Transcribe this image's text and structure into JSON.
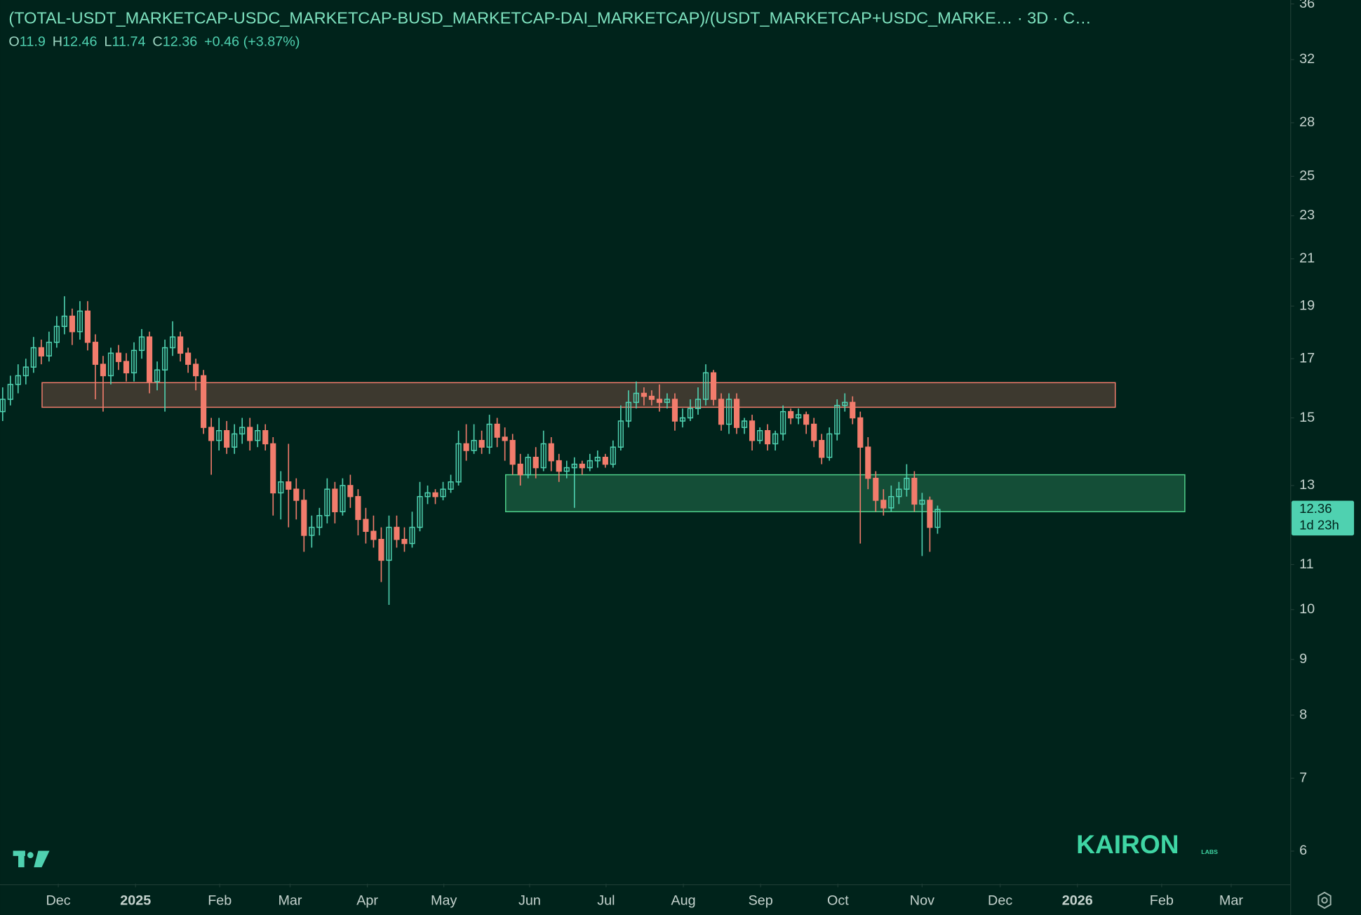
{
  "chart_data": {
    "type": "candlestick",
    "title": "(TOTAL-USDT_MARKETCAP-USDC_MARKETCAP-BUSD_MARKETCAP-DAI_MARKETCAP)/(USDT_MARKETCAP+USDC_MARKE… · 3D · C…",
    "ohlc_labels": [
      "O",
      "H",
      "L",
      "C"
    ],
    "change": "+0.46 (+3.87%)",
    "countdown": "1d 23h",
    "brand": "KAIRON",
    "brand_sub": "LABS",
    "up_color": "#4fd1b0",
    "down_color": "#f27c6c",
    "log_scale": true,
    "ylim": [
      5.6,
      36.3
    ],
    "yticks": [
      6,
      7,
      8,
      9,
      10,
      11,
      13,
      15,
      17,
      19,
      21,
      23,
      25,
      28,
      32,
      36
    ],
    "xlim": [
      -0.34,
      166.7
    ],
    "xticks": [
      {
        "value": 7.2,
        "label": "Dec"
      },
      {
        "value": 17.2,
        "label": "2025"
      },
      {
        "value": 28.1,
        "label": "Feb"
      },
      {
        "value": 37.2,
        "label": "Mar"
      },
      {
        "value": 47.2,
        "label": "Apr"
      },
      {
        "value": 57.1,
        "label": "May"
      },
      {
        "value": 68.2,
        "label": "Jun"
      },
      {
        "value": 78.1,
        "label": "Jul"
      },
      {
        "value": 88.1,
        "label": "Aug"
      },
      {
        "value": 98.1,
        "label": "Sep"
      },
      {
        "value": 108.1,
        "label": "Oct"
      },
      {
        "value": 119,
        "label": "Nov"
      },
      {
        "value": 129.1,
        "label": "Dec"
      },
      {
        "value": 139.1,
        "label": "2026"
      },
      {
        "value": 150,
        "label": "Feb"
      },
      {
        "value": 159,
        "label": "Mar"
      }
    ],
    "zones": [
      {
        "x0": 5.1,
        "x1": 144.0,
        "y0": 15.34,
        "y1": 16.16,
        "color": "#f27c6c"
      },
      {
        "x0": 65.1,
        "x1": 153.0,
        "y0": 12.3,
        "y1": 13.3,
        "color": "#4fd18a"
      }
    ],
    "open": [
      15.2,
      15.6,
      16.1,
      16.4,
      16.7,
      17.4,
      17.1,
      17.6,
      18.2,
      18.6,
      18.0,
      18.8,
      17.6,
      16.8,
      16.4,
      17.2,
      16.9,
      16.5,
      17.3,
      17.8,
      16.2,
      16.6,
      17.4,
      17.8,
      17.2,
      16.8,
      16.4,
      14.7,
      14.3,
      14.6,
      14.1,
      14.5,
      14.7,
      14.3,
      14.6,
      14.2,
      12.8,
      13.1,
      12.9,
      12.6,
      11.7,
      11.9,
      12.2,
      12.9,
      12.3,
      13.0,
      12.7,
      12.1,
      11.8,
      11.6,
      11.1,
      11.9,
      11.6,
      11.5,
      11.9,
      12.7,
      12.8,
      12.7,
      12.9,
      13.1,
      14.2,
      14.0,
      14.3,
      14.1,
      14.8,
      14.4,
      14.3,
      13.6,
      13.3,
      13.8,
      13.5,
      14.2,
      13.7,
      13.4,
      13.5,
      13.6,
      13.5,
      13.7,
      13.8,
      13.6,
      14.1,
      14.9,
      15.5,
      15.8,
      15.7,
      15.6,
      15.5,
      15.6,
      14.9,
      15.0,
      15.3,
      15.6,
      16.5,
      15.6,
      14.8,
      15.6,
      14.7,
      14.9,
      14.3,
      14.6,
      14.2,
      14.5,
      15.2,
      15.0,
      15.1,
      14.8,
      14.3,
      13.8,
      14.5,
      15.4,
      15.5,
      15.0,
      14.1,
      13.2,
      12.6,
      12.4,
      12.7,
      12.9,
      13.2,
      12.5,
      12.6,
      11.9
    ],
    "high": [
      16.0,
      16.4,
      16.8,
      17.0,
      17.8,
      17.7,
      18.0,
      18.6,
      19.4,
      18.9,
      19.2,
      19.2,
      17.9,
      17.1,
      17.4,
      17.5,
      17.2,
      17.6,
      18.1,
      18.0,
      16.9,
      17.7,
      18.4,
      18.0,
      17.4,
      17.0,
      16.6,
      15.0,
      15.0,
      14.9,
      14.8,
      15.0,
      15.0,
      14.8,
      14.8,
      14.4,
      13.4,
      14.2,
      13.2,
      12.9,
      12.2,
      12.4,
      13.2,
      13.1,
      13.2,
      13.3,
      12.9,
      12.4,
      12.2,
      11.9,
      12.2,
      12.2,
      11.9,
      12.3,
      13.1,
      13.0,
      12.9,
      13.1,
      13.3,
      14.6,
      14.8,
      14.8,
      14.6,
      15.1,
      15.0,
      14.7,
      14.5,
      13.9,
      13.9,
      14.1,
      14.6,
      14.4,
      13.9,
      13.7,
      13.8,
      13.7,
      13.9,
      14.0,
      13.9,
      14.3,
      15.4,
      15.9,
      16.2,
      16.0,
      15.9,
      16.1,
      15.8,
      15.8,
      15.3,
      15.6,
      16.0,
      16.8,
      16.6,
      15.8,
      15.8,
      15.8,
      15.0,
      15.1,
      14.7,
      14.8,
      14.6,
      15.4,
      15.3,
      15.3,
      15.2,
      15.0,
      14.5,
      14.7,
      15.6,
      15.8,
      15.7,
      15.2,
      14.4,
      13.4,
      12.9,
      13.0,
      13.1,
      13.6,
      13.4,
      12.8,
      12.7,
      12.46
    ],
    "low": [
      14.9,
      15.4,
      15.8,
      16.1,
      16.5,
      16.8,
      16.9,
      17.4,
      17.9,
      17.5,
      17.7,
      17.3,
      15.6,
      15.2,
      16.1,
      16.6,
      16.2,
      16.2,
      17.0,
      15.8,
      15.9,
      15.2,
      17.1,
      16.9,
      16.5,
      15.9,
      14.5,
      13.3,
      14.0,
      13.9,
      13.9,
      14.2,
      14.0,
      14.1,
      14.0,
      12.2,
      12.1,
      11.9,
      12.1,
      11.3,
      11.4,
      11.7,
      12.0,
      12.0,
      12.2,
      12.4,
      11.7,
      11.5,
      11.4,
      10.6,
      10.1,
      11.4,
      11.3,
      11.4,
      11.8,
      12.5,
      12.5,
      12.6,
      12.8,
      13.0,
      13.7,
      13.9,
      13.9,
      13.9,
      14.1,
      13.7,
      13.3,
      13.0,
      13.2,
      13.2,
      13.4,
      13.4,
      13.1,
      13.2,
      12.4,
      13.3,
      13.4,
      13.5,
      13.5,
      13.5,
      14.0,
      14.7,
      15.3,
      15.4,
      15.4,
      15.2,
      15.3,
      14.6,
      14.7,
      14.9,
      15.1,
      15.4,
      15.4,
      14.6,
      14.5,
      14.5,
      14.5,
      14.0,
      14.2,
      14.0,
      14.0,
      14.3,
      14.8,
      14.8,
      14.5,
      14.1,
      13.6,
      13.7,
      14.3,
      15.2,
      14.8,
      11.5,
      12.9,
      12.3,
      12.2,
      12.3,
      12.5,
      12.7,
      12.3,
      11.2,
      11.3,
      11.74
    ],
    "close": [
      15.6,
      16.1,
      16.4,
      16.7,
      17.4,
      17.1,
      17.6,
      18.2,
      18.6,
      18.0,
      18.8,
      17.6,
      16.8,
      16.4,
      17.2,
      16.9,
      16.5,
      17.3,
      17.8,
      16.2,
      16.6,
      17.4,
      17.8,
      17.2,
      16.8,
      16.4,
      14.7,
      14.3,
      14.6,
      14.1,
      14.5,
      14.7,
      14.3,
      14.6,
      14.2,
      12.8,
      13.1,
      12.9,
      12.6,
      11.7,
      11.9,
      12.2,
      12.9,
      12.3,
      13.0,
      12.7,
      12.1,
      11.8,
      11.6,
      11.1,
      11.9,
      11.6,
      11.5,
      11.9,
      12.7,
      12.8,
      12.7,
      12.9,
      13.1,
      14.2,
      14.0,
      14.3,
      14.1,
      14.8,
      14.4,
      14.3,
      13.6,
      13.3,
      13.8,
      13.5,
      14.2,
      13.7,
      13.4,
      13.5,
      13.6,
      13.5,
      13.7,
      13.8,
      13.6,
      14.1,
      14.9,
      15.5,
      15.8,
      15.7,
      15.6,
      15.5,
      15.6,
      14.9,
      15.0,
      15.3,
      15.6,
      16.5,
      15.6,
      14.8,
      15.6,
      14.7,
      14.9,
      14.3,
      14.6,
      14.2,
      14.5,
      15.2,
      15.0,
      15.1,
      14.8,
      14.3,
      13.8,
      14.5,
      15.4,
      15.5,
      15.0,
      14.1,
      13.2,
      12.6,
      12.4,
      12.7,
      12.9,
      13.2,
      12.5,
      12.6,
      11.9,
      12.36
    ]
  }
}
